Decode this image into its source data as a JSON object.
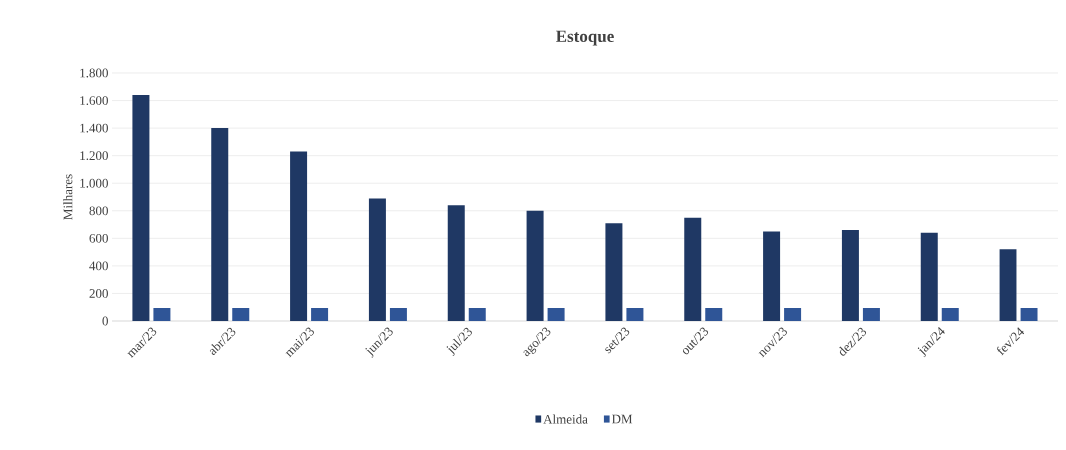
{
  "chart_data": {
    "type": "bar",
    "title": "Estoque",
    "ylabel": "Milhares",
    "categories": [
      "mar/23",
      "abr/23",
      "mai/23",
      "jun/23",
      "jul/23",
      "ago/23",
      "set/23",
      "out/23",
      "nov/23",
      "dez/23",
      "jan/24",
      "fev/24"
    ],
    "series": [
      {
        "name": "Almeida",
        "color": "#1f3864",
        "values": [
          1640,
          1400,
          1230,
          890,
          840,
          800,
          710,
          750,
          650,
          660,
          640,
          520
        ]
      },
      {
        "name": "DM",
        "color": "#2f5597",
        "values": [
          95,
          95,
          95,
          95,
          95,
          95,
          95,
          95,
          95,
          95,
          95,
          95
        ]
      }
    ],
    "ylim": [
      0,
      1800
    ],
    "yticks": [
      0,
      200,
      400,
      600,
      800,
      {
        "value": 1000,
        "label": "1.000"
      },
      {
        "value": 1200,
        "label": "1.200"
      },
      {
        "value": 1400,
        "label": "1.400"
      },
      {
        "value": 1600,
        "label": "1.600"
      },
      {
        "value": 1800,
        "label": "1.800"
      }
    ],
    "grid": "y",
    "legend": "bottom"
  }
}
